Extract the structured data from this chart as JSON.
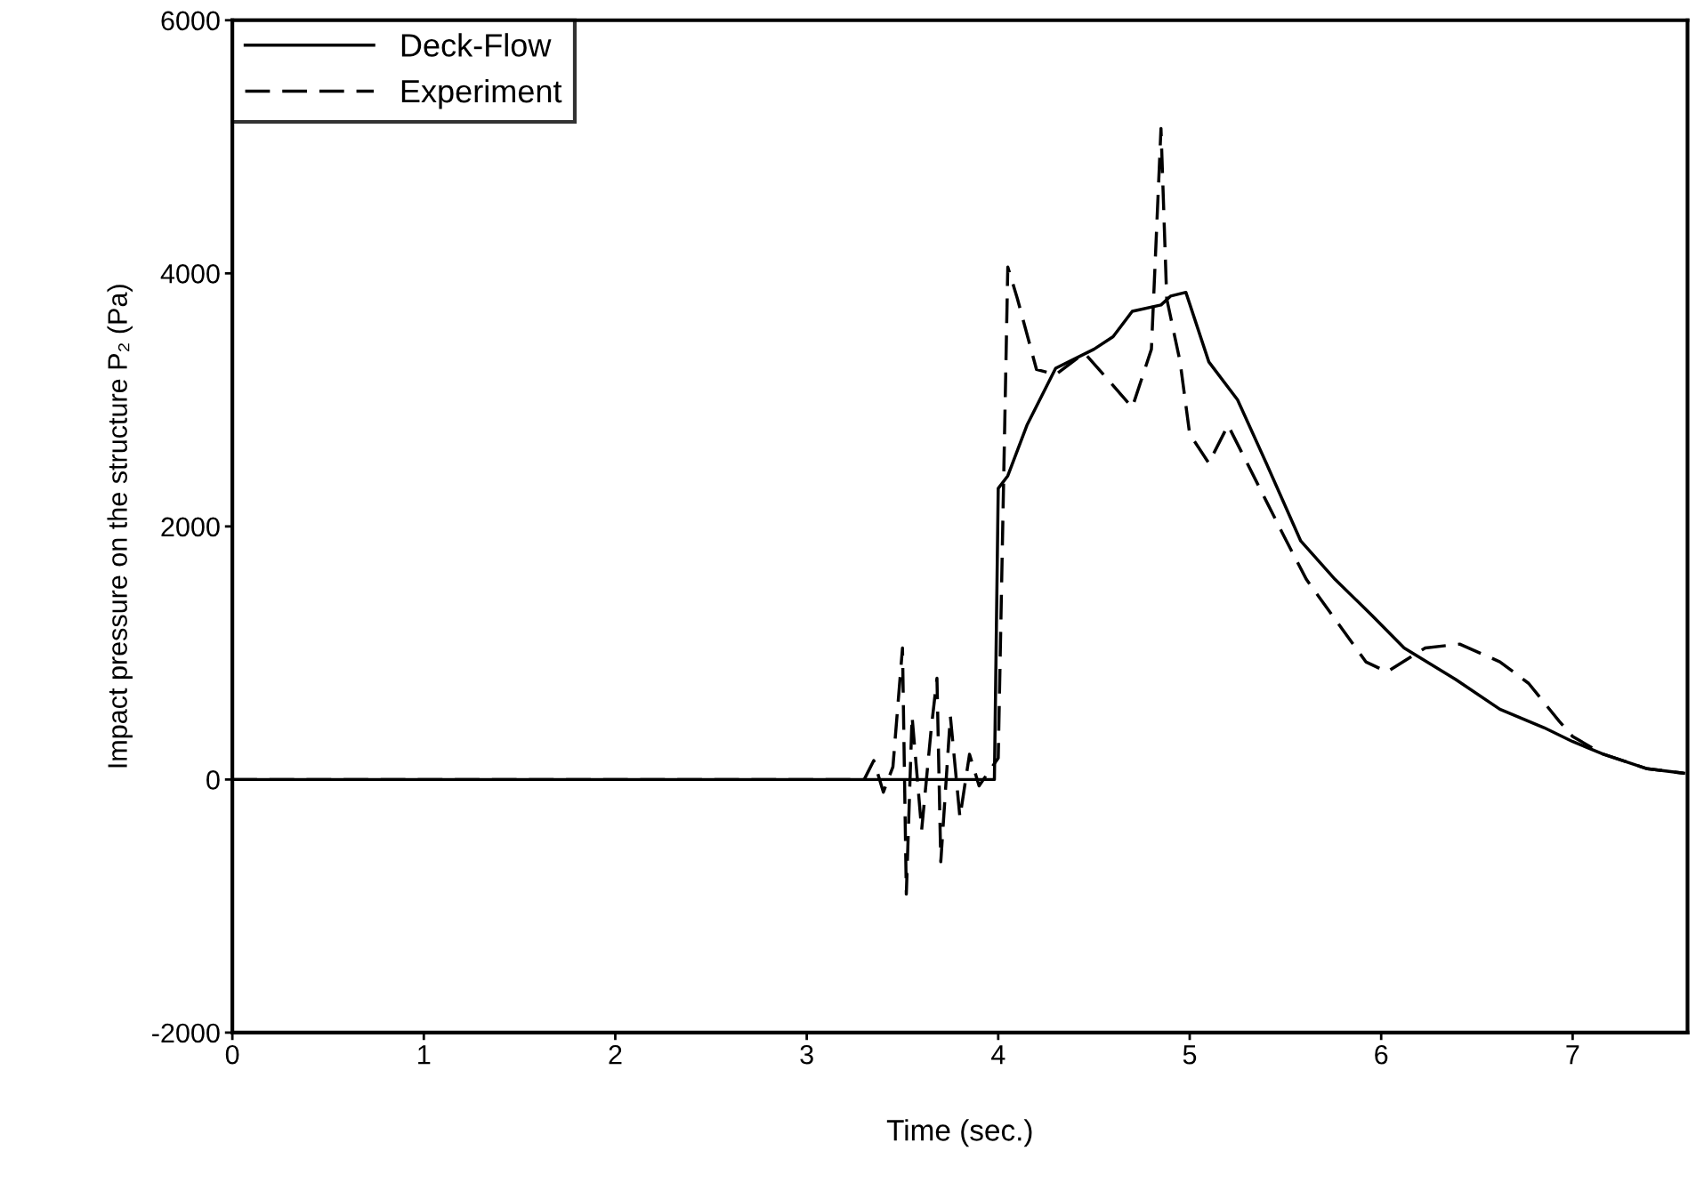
{
  "chart_data": {
    "type": "line",
    "xlabel": "Time (sec.)",
    "ylabel": "Impact pressure on the structure P₂ (Pa)",
    "xlim": [
      0,
      7.6
    ],
    "ylim": [
      -2000,
      6000
    ],
    "xticks": [
      0,
      1,
      2,
      3,
      4,
      5,
      6,
      7
    ],
    "yticks": [
      -2000,
      0,
      2000,
      4000,
      6000
    ],
    "grid": false,
    "legend": "top left",
    "marker": "none",
    "series": [
      {
        "name": "Deck-Flow",
        "color": "#000000",
        "line_style": "solid",
        "x": [
          0,
          3.98,
          4.0,
          4.05,
          4.15,
          4.3,
          4.5,
          4.6,
          4.7,
          4.85,
          4.9,
          4.98,
          5.1,
          5.25,
          5.4,
          5.58,
          5.76,
          5.95,
          6.12,
          6.39,
          6.62,
          6.85,
          7.0,
          7.16,
          7.39,
          7.58
        ],
        "values": [
          0,
          0,
          2300,
          2400,
          2800,
          3250,
          3400,
          3500,
          3700,
          3750,
          3820,
          3850,
          3300,
          3000,
          2500,
          1885,
          1580,
          1300,
          1040,
          790,
          555,
          410,
          300,
          200,
          85,
          50
        ]
      },
      {
        "name": "Experiment",
        "color": "#000000",
        "line_style": "dashed",
        "x": [
          0,
          3.3,
          3.35,
          3.4,
          3.45,
          3.5,
          3.52,
          3.55,
          3.6,
          3.65,
          3.68,
          3.7,
          3.75,
          3.8,
          3.85,
          3.9,
          4.0,
          4.05,
          4.1,
          4.2,
          4.3,
          4.45,
          4.55,
          4.7,
          4.8,
          4.85,
          4.88,
          4.95,
          5.0,
          5.1,
          5.2,
          5.3,
          5.4,
          5.5,
          5.61,
          5.92,
          6.03,
          6.23,
          6.41,
          6.62,
          6.77,
          6.93,
          7.0,
          7.16,
          7.39,
          7.58
        ],
        "values": [
          0,
          0,
          150,
          -100,
          100,
          1040,
          -905,
          500,
          -400,
          400,
          800,
          -650,
          500,
          -300,
          200,
          -50,
          170,
          4050,
          3800,
          3240,
          3200,
          3370,
          3200,
          2940,
          3400,
          5145,
          3800,
          3300,
          2730,
          2500,
          2800,
          2500,
          2200,
          1900,
          1580,
          930,
          850,
          1040,
          1070,
          930,
          760,
          460,
          340,
          200,
          85,
          50
        ]
      }
    ]
  }
}
